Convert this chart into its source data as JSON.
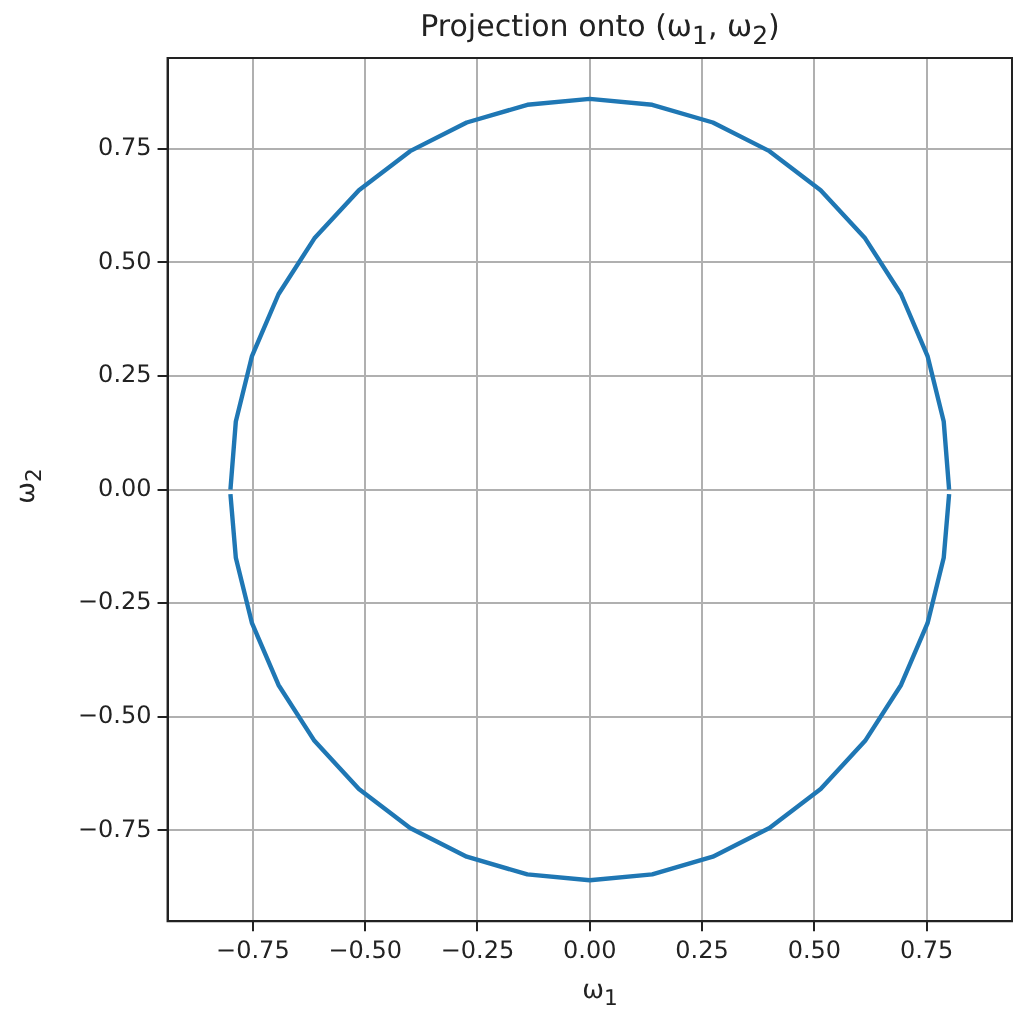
{
  "chart_data": {
    "type": "line",
    "title": "Projection onto (ω$_{1}$, ω$_{2}$)",
    "xlabel": "ω$_{1}$",
    "ylabel": "ω$_{2}$",
    "xlim": [
      -0.94,
      0.94
    ],
    "ylim": [
      -0.95,
      0.95
    ],
    "xticks": [
      {
        "value": -0.75,
        "label": "−0.75"
      },
      {
        "value": -0.5,
        "label": "−0.50"
      },
      {
        "value": -0.25,
        "label": "−0.25"
      },
      {
        "value": 0,
        "label": "0.00"
      },
      {
        "value": 0.25,
        "label": "0.25"
      },
      {
        "value": 0.5,
        "label": "0.50"
      },
      {
        "value": 0.75,
        "label": "0.75"
      }
    ],
    "yticks": [
      {
        "value": -0.75,
        "label": "−0.75"
      },
      {
        "value": -0.5,
        "label": "−0.50"
      },
      {
        "value": -0.25,
        "label": "−0.25"
      },
      {
        "value": 0,
        "label": "0.00"
      },
      {
        "value": 0.25,
        "label": "0.25"
      },
      {
        "value": 0.5,
        "label": "0.50"
      },
      {
        "value": 0.75,
        "label": "0.75"
      }
    ],
    "grid": true,
    "legend": false,
    "marker": "none",
    "line_style": "solid",
    "series": [
      {
        "color": "#1f77b4",
        "x": [
          -0.8,
          -0.788,
          -0.752,
          -0.693,
          -0.613,
          -0.514,
          -0.4,
          -0.274,
          -0.139,
          0,
          0.139,
          0.274,
          0.4,
          0.514,
          0.613,
          0.693,
          0.752,
          0.788,
          0.8
        ],
        "values": [
          0,
          0.15,
          0.294,
          0.43,
          0.553,
          0.659,
          0.745,
          0.808,
          0.847,
          0.86,
          0.847,
          0.808,
          0.745,
          0.659,
          0.553,
          0.43,
          0.294,
          0.15,
          0
        ]
      },
      {
        "color": "#1f77b4",
        "x": [
          -0.8,
          -0.788,
          -0.752,
          -0.693,
          -0.613,
          -0.514,
          -0.4,
          -0.274,
          -0.139,
          0,
          0.139,
          0.274,
          0.4,
          0.514,
          0.613,
          0.693,
          0.752,
          0.788,
          0.8
        ],
        "values": [
          -0.01,
          -0.15,
          -0.294,
          -0.43,
          -0.553,
          -0.659,
          -0.745,
          -0.808,
          -0.847,
          -0.86,
          -0.847,
          -0.808,
          -0.745,
          -0.659,
          -0.553,
          -0.43,
          -0.294,
          -0.15,
          -0.01
        ]
      }
    ]
  }
}
